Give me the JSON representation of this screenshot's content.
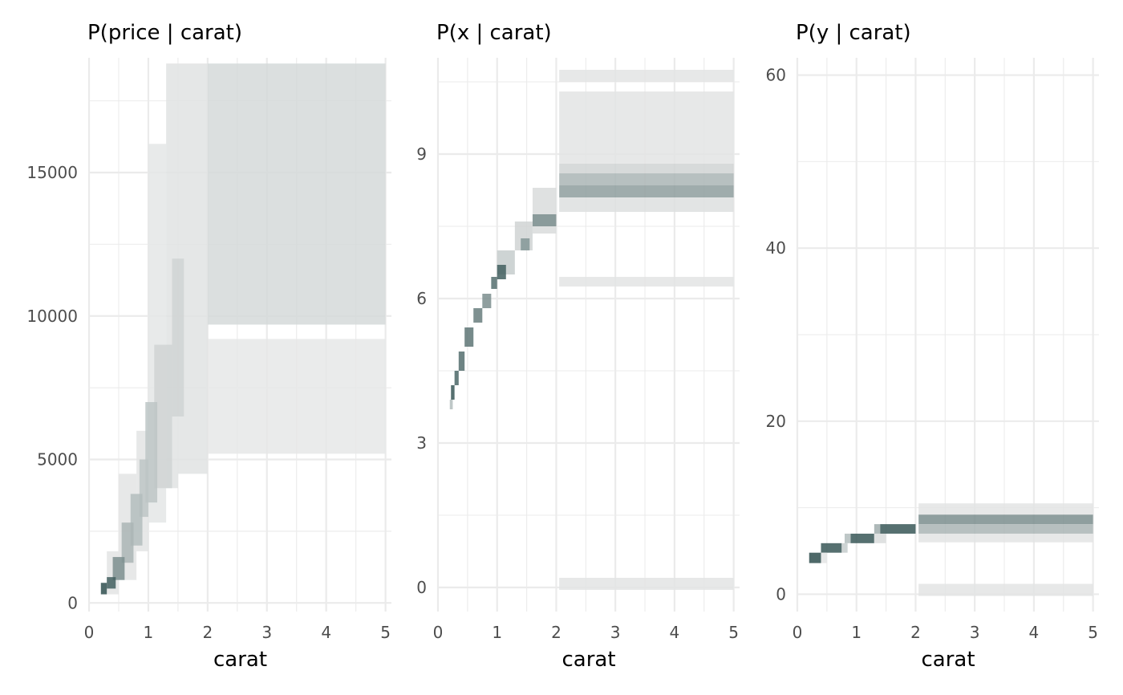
{
  "chart_data": [
    {
      "type": "heatmap",
      "title": "P(price | carat)",
      "xlabel": "carat",
      "ylabel": "",
      "xlim": [
        0,
        5.1
      ],
      "ylim": [
        -300,
        19000
      ],
      "x_ticks": [
        0,
        1,
        2,
        3,
        4,
        5
      ],
      "y_ticks": [
        0,
        5000,
        10000,
        15000
      ],
      "x_tick_labels": [
        "0",
        "1",
        "2",
        "3",
        "4",
        "5"
      ],
      "y_tick_labels": [
        "0",
        "5000",
        "10000",
        "15000"
      ],
      "grid": true,
      "legend": "none",
      "palette": {
        "low": "#ececec",
        "high": "#2f4f4f"
      },
      "cells": [
        {
          "x0": 2.0,
          "x1": 5.0,
          "y0": 9700,
          "y1": 18800,
          "p": 0.12
        },
        {
          "x0": 2.0,
          "x1": 5.0,
          "y0": 5200,
          "y1": 9200,
          "p": 0.03
        },
        {
          "x0": 1.5,
          "x1": 2.0,
          "y0": 4500,
          "y1": 18800,
          "p": 0.06
        },
        {
          "x0": 1.3,
          "x1": 1.5,
          "y0": 4000,
          "y1": 18800,
          "p": 0.06
        },
        {
          "x0": 1.0,
          "x1": 1.3,
          "y0": 2800,
          "y1": 16000,
          "p": 0.04
        },
        {
          "x0": 0.8,
          "x1": 1.0,
          "y0": 1800,
          "y1": 6000,
          "p": 0.05
        },
        {
          "x0": 0.5,
          "x1": 0.8,
          "y0": 800,
          "y1": 4500,
          "p": 0.05
        },
        {
          "x0": 0.3,
          "x1": 0.5,
          "y0": 300,
          "y1": 1800,
          "p": 0.05
        },
        {
          "x0": 1.4,
          "x1": 1.6,
          "y0": 6500,
          "y1": 12000,
          "p": 0.15
        },
        {
          "x0": 1.1,
          "x1": 1.4,
          "y0": 4000,
          "y1": 9000,
          "p": 0.15
        },
        {
          "x0": 0.95,
          "x1": 1.15,
          "y0": 3500,
          "y1": 7000,
          "p": 0.25
        },
        {
          "x0": 0.85,
          "x1": 1.0,
          "y0": 3000,
          "y1": 5000,
          "p": 0.25
        },
        {
          "x0": 0.7,
          "x1": 0.9,
          "y0": 2000,
          "y1": 3800,
          "p": 0.3
        },
        {
          "x0": 0.55,
          "x1": 0.75,
          "y0": 1400,
          "y1": 2800,
          "p": 0.35
        },
        {
          "x0": 0.4,
          "x1": 0.6,
          "y0": 800,
          "y1": 1600,
          "p": 0.6
        },
        {
          "x0": 0.3,
          "x1": 0.45,
          "y0": 500,
          "y1": 900,
          "p": 0.9
        },
        {
          "x0": 0.2,
          "x1": 0.3,
          "y0": 300,
          "y1": 700,
          "p": 1.0
        }
      ]
    },
    {
      "type": "heatmap",
      "title": "P(x | carat)",
      "xlabel": "carat",
      "ylabel": "",
      "xlim": [
        0,
        5.1
      ],
      "ylim": [
        -0.5,
        11
      ],
      "x_ticks": [
        0,
        1,
        2,
        3,
        4,
        5
      ],
      "y_ticks": [
        0,
        3,
        6,
        9
      ],
      "x_tick_labels": [
        "0",
        "1",
        "2",
        "3",
        "4",
        "5"
      ],
      "y_tick_labels": [
        "0",
        "3",
        "6",
        "9"
      ],
      "grid": true,
      "legend": "none",
      "palette": {
        "low": "#ececec",
        "high": "#2f4f4f"
      },
      "cells": [
        {
          "x0": 2.05,
          "x1": 5.0,
          "y0": 10.5,
          "y1": 10.75,
          "p": 0.05
        },
        {
          "x0": 2.05,
          "x1": 5.0,
          "y0": 8.8,
          "y1": 10.3,
          "p": 0.05
        },
        {
          "x0": 2.05,
          "x1": 5.0,
          "y0": 8.6,
          "y1": 8.8,
          "p": 0.15
        },
        {
          "x0": 2.05,
          "x1": 5.0,
          "y0": 8.35,
          "y1": 8.6,
          "p": 0.35
        },
        {
          "x0": 2.05,
          "x1": 5.0,
          "y0": 8.1,
          "y1": 8.35,
          "p": 0.5
        },
        {
          "x0": 2.05,
          "x1": 5.0,
          "y0": 7.8,
          "y1": 8.1,
          "p": 0.08
        },
        {
          "x0": 2.05,
          "x1": 5.0,
          "y0": 6.25,
          "y1": 6.45,
          "p": 0.05
        },
        {
          "x0": 2.05,
          "x1": 5.0,
          "y0": -0.05,
          "y1": 0.2,
          "p": 0.05
        },
        {
          "x0": 1.6,
          "x1": 2.0,
          "y0": 7.35,
          "y1": 8.3,
          "p": 0.1
        },
        {
          "x0": 1.6,
          "x1": 2.0,
          "y0": 7.5,
          "y1": 7.75,
          "p": 0.6
        },
        {
          "x0": 1.3,
          "x1": 1.6,
          "y0": 7.0,
          "y1": 7.6,
          "p": 0.15
        },
        {
          "x0": 1.4,
          "x1": 1.55,
          "y0": 7.0,
          "y1": 7.25,
          "p": 0.55
        },
        {
          "x0": 1.0,
          "x1": 1.3,
          "y0": 6.5,
          "y1": 7.0,
          "p": 0.2
        },
        {
          "x0": 1.0,
          "x1": 1.15,
          "y0": 6.4,
          "y1": 6.7,
          "p": 0.9
        },
        {
          "x0": 0.9,
          "x1": 1.0,
          "y0": 6.2,
          "y1": 6.45,
          "p": 0.8
        },
        {
          "x0": 0.75,
          "x1": 0.9,
          "y0": 5.8,
          "y1": 6.1,
          "p": 0.6
        },
        {
          "x0": 0.6,
          "x1": 0.75,
          "y0": 5.5,
          "y1": 5.8,
          "p": 0.7
        },
        {
          "x0": 0.45,
          "x1": 0.6,
          "y0": 5.0,
          "y1": 5.4,
          "p": 0.75
        },
        {
          "x0": 0.35,
          "x1": 0.45,
          "y0": 4.5,
          "y1": 4.9,
          "p": 0.8
        },
        {
          "x0": 0.28,
          "x1": 0.35,
          "y0": 4.2,
          "y1": 4.5,
          "p": 0.85
        },
        {
          "x0": 0.22,
          "x1": 0.28,
          "y0": 3.9,
          "y1": 4.2,
          "p": 0.95
        },
        {
          "x0": 0.2,
          "x1": 0.25,
          "y0": 3.7,
          "y1": 3.9,
          "p": 0.3
        }
      ]
    },
    {
      "type": "heatmap",
      "title": "P(y | carat)",
      "xlabel": "carat",
      "ylabel": "",
      "xlim": [
        0,
        5.1
      ],
      "ylim": [
        -2,
        62
      ],
      "x_ticks": [
        0,
        1,
        2,
        3,
        4,
        5
      ],
      "y_ticks": [
        0,
        20,
        40,
        60
      ],
      "x_tick_labels": [
        "0",
        "1",
        "2",
        "3",
        "4",
        "5"
      ],
      "y_tick_labels": [
        "0",
        "20",
        "40",
        "60"
      ],
      "grid": true,
      "legend": "none",
      "palette": {
        "low": "#ececec",
        "high": "#2f4f4f"
      },
      "cells": [
        {
          "x0": 2.05,
          "x1": 5.0,
          "y0": 9.2,
          "y1": 10.5,
          "p": 0.05
        },
        {
          "x0": 2.05,
          "x1": 5.0,
          "y0": 8.1,
          "y1": 9.2,
          "p": 0.6
        },
        {
          "x0": 2.05,
          "x1": 5.0,
          "y0": 7.0,
          "y1": 8.1,
          "p": 0.35
        },
        {
          "x0": 2.05,
          "x1": 5.0,
          "y0": 6.0,
          "y1": 7.0,
          "p": 0.05
        },
        {
          "x0": 2.05,
          "x1": 5.0,
          "y0": -0.2,
          "y1": 1.2,
          "p": 0.05
        },
        {
          "x0": 1.4,
          "x1": 2.0,
          "y0": 7.0,
          "y1": 8.1,
          "p": 0.95
        },
        {
          "x0": 1.3,
          "x1": 1.4,
          "y0": 7.0,
          "y1": 8.1,
          "p": 0.4
        },
        {
          "x0": 0.9,
          "x1": 1.3,
          "y0": 5.9,
          "y1": 7.0,
          "p": 0.95
        },
        {
          "x0": 0.8,
          "x1": 0.9,
          "y0": 5.9,
          "y1": 7.0,
          "p": 0.3
        },
        {
          "x0": 1.3,
          "x1": 1.5,
          "y0": 5.9,
          "y1": 7.0,
          "p": 0.1
        },
        {
          "x0": 0.4,
          "x1": 0.75,
          "y0": 4.8,
          "y1": 5.9,
          "p": 0.95
        },
        {
          "x0": 0.75,
          "x1": 0.85,
          "y0": 4.8,
          "y1": 5.9,
          "p": 0.2
        },
        {
          "x0": 0.2,
          "x1": 0.4,
          "y0": 3.6,
          "y1": 4.8,
          "p": 1.0
        },
        {
          "x0": 0.4,
          "x1": 0.5,
          "y0": 3.6,
          "y1": 4.8,
          "p": 0.05
        }
      ]
    }
  ]
}
